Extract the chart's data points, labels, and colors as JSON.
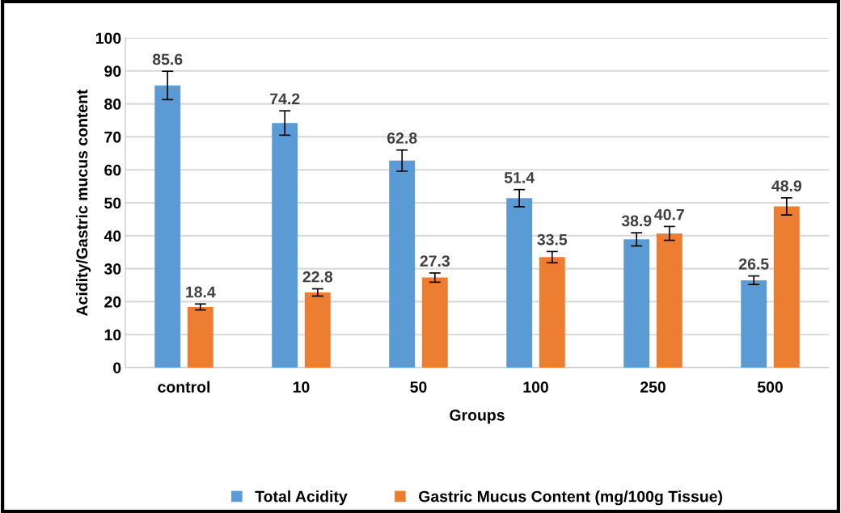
{
  "chart_data": {
    "type": "bar",
    "xlabel": "Groups",
    "ylabel": "Acidity/Gastric mucus content",
    "categories": [
      "control",
      "10",
      "50",
      "100",
      "250",
      "500"
    ],
    "series": [
      {
        "name": "Total Acidity",
        "color": "#5b9bd5",
        "values": [
          85.6,
          74.2,
          62.8,
          51.4,
          38.9,
          26.5
        ],
        "errors": [
          4.3,
          3.7,
          3.2,
          2.6,
          2.0,
          1.3
        ]
      },
      {
        "name": "Gastric Mucus Content (mg/100g Tissue)",
        "color": "#ed7d31",
        "values": [
          18.4,
          22.8,
          27.3,
          33.5,
          40.7,
          48.9
        ],
        "errors": [
          0.9,
          1.1,
          1.4,
          1.7,
          2.1,
          2.6
        ]
      }
    ],
    "ylim": [
      0,
      100
    ],
    "yticks": [
      0,
      10,
      20,
      30,
      40,
      50,
      60,
      70,
      80,
      90,
      100
    ],
    "grid": "y",
    "legend": "bottom",
    "data_labels": true
  }
}
